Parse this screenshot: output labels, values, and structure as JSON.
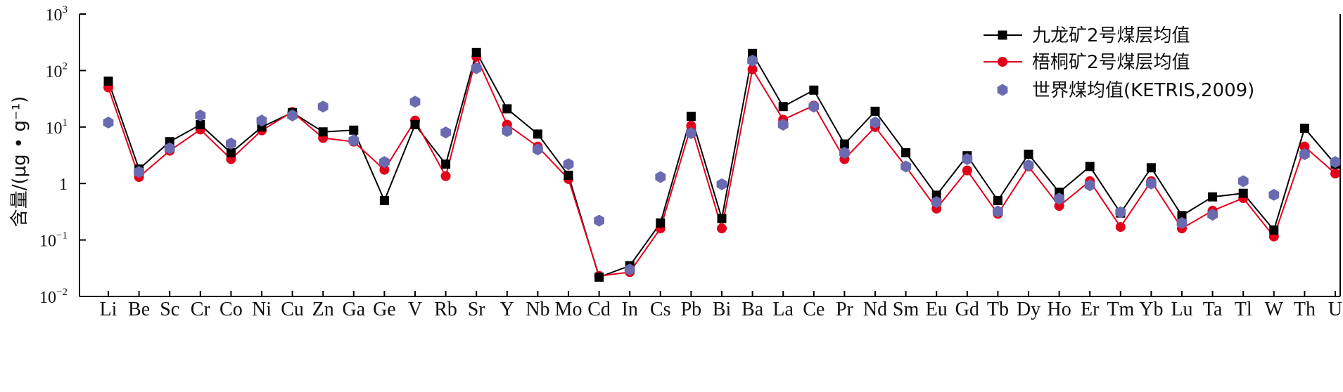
{
  "chart_data": {
    "type": "line",
    "yscale": "log",
    "ylim": [
      0.01,
      1000
    ],
    "ylabel": "含量/(μg • g⁻¹)",
    "yticks": [
      {
        "value": 0.01,
        "base": "10",
        "exp": "−2"
      },
      {
        "value": 0.1,
        "base": "10",
        "exp": "−1"
      },
      {
        "value": 1,
        "base": "1",
        "exp": ""
      },
      {
        "value": 10,
        "base": "10",
        "exp": "1"
      },
      {
        "value": 100,
        "base": "10",
        "exp": "2"
      },
      {
        "value": 1000,
        "base": "10",
        "exp": "3"
      }
    ],
    "categories": [
      "Li",
      "Be",
      "Sc",
      "Cr",
      "Co",
      "Ni",
      "Cu",
      "Zn",
      "Ga",
      "Ge",
      "V",
      "Rb",
      "Sr",
      "Y",
      "Nb",
      "Mo",
      "Cd",
      "In",
      "Cs",
      "Pb",
      "Bi",
      "Ba",
      "La",
      "Ce",
      "Pr",
      "Nd",
      "Sm",
      "Eu",
      "Gd",
      "Tb",
      "Dy",
      "Ho",
      "Er",
      "Tm",
      "Yb",
      "Lu",
      "Ta",
      "Tl",
      "W",
      "Th",
      "U"
    ],
    "series": [
      {
        "name": "九龙矿2号煤层均值",
        "color": "#000000",
        "marker": "square",
        "line": true,
        "values": [
          65,
          1.8,
          5.5,
          11,
          3.5,
          10,
          18,
          8.2,
          8.8,
          0.5,
          11,
          2.2,
          210,
          21,
          7.5,
          1.4,
          0.022,
          0.035,
          0.2,
          15.5,
          0.24,
          200,
          23,
          45,
          5,
          19,
          3.5,
          0.62,
          3.1,
          0.5,
          3.3,
          0.7,
          2,
          0.3,
          1.9,
          0.27,
          0.58,
          0.67,
          0.15,
          9.5,
          2.2
        ]
      },
      {
        "name": "梧桐矿2号煤层均值",
        "color": "#e3001b",
        "marker": "circle",
        "line": true,
        "values": [
          50,
          1.3,
          3.8,
          9,
          2.7,
          8.7,
          18.5,
          6.4,
          5.5,
          1.75,
          13,
          1.35,
          175,
          11,
          4.5,
          1.2,
          0.023,
          0.027,
          0.16,
          10.5,
          0.16,
          105,
          13.5,
          24,
          2.7,
          10,
          2,
          0.36,
          1.7,
          0.29,
          2,
          0.4,
          1.1,
          0.17,
          1.1,
          0.16,
          0.33,
          0.55,
          0.115,
          4.5,
          1.5
        ]
      },
      {
        "name": "世界煤均值(KETRIS,2009)",
        "color": "#6a6ab0",
        "marker": "hexagon",
        "line": false,
        "values": [
          12,
          1.6,
          4.2,
          16,
          5.1,
          13,
          16,
          23,
          5.8,
          2.4,
          28,
          8,
          110,
          8.5,
          4,
          2.2,
          0.22,
          0.03,
          1.3,
          7.8,
          0.97,
          150,
          11,
          23,
          3.5,
          12,
          2,
          0.47,
          2.7,
          0.32,
          2.1,
          0.54,
          0.93,
          0.31,
          1,
          0.2,
          0.28,
          1.1,
          0.63,
          3.3,
          2.4
        ]
      }
    ],
    "legend": {
      "position": "top-right"
    }
  }
}
